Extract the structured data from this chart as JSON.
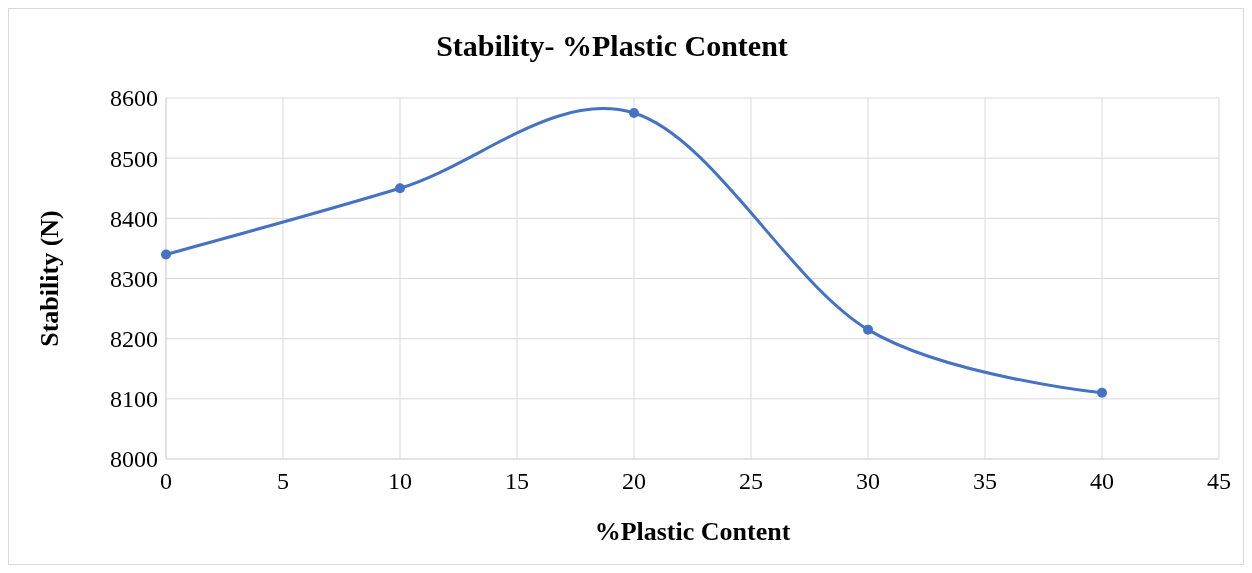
{
  "chart_data": {
    "type": "line",
    "title": "Stability- %Plastic Content",
    "xlabel": "%Plastic Content",
    "ylabel": "Stability (N)",
    "x": [
      0,
      10,
      20,
      30,
      40
    ],
    "series": [
      {
        "color": "#4472c4",
        "values": [
          8340,
          8450,
          8575,
          8215,
          8110
        ]
      }
    ],
    "xlim": [
      0,
      45
    ],
    "xticks": [
      0,
      5,
      10,
      15,
      20,
      25,
      30,
      35,
      40,
      45
    ],
    "ylim": [
      8000,
      8600
    ],
    "yticks": [
      8000,
      8100,
      8200,
      8300,
      8400,
      8500,
      8600
    ],
    "grid": true,
    "marker": "circle",
    "line_style": "solid"
  }
}
